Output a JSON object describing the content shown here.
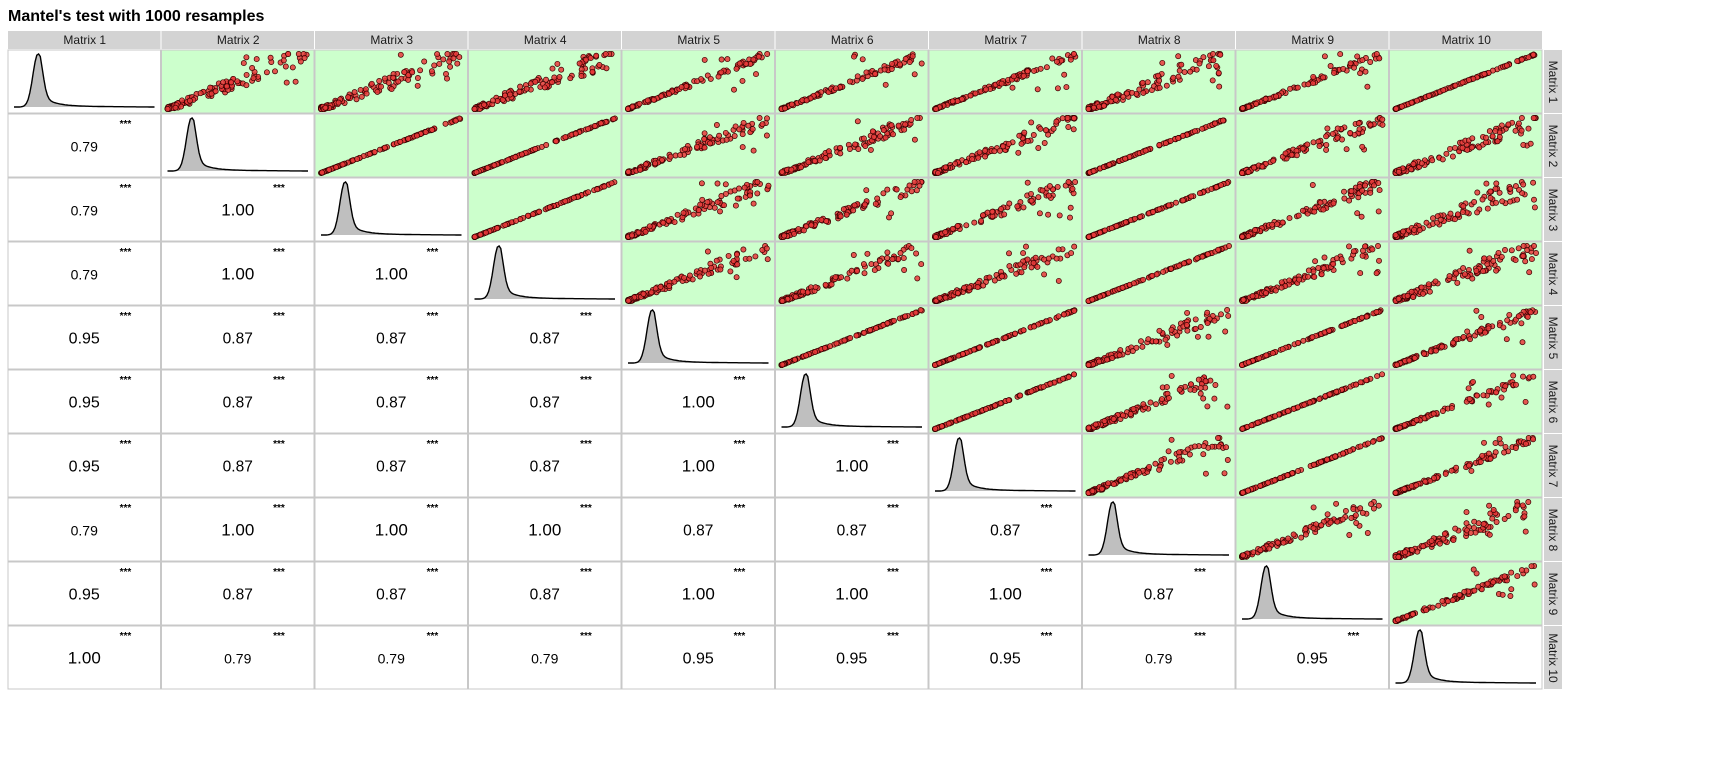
{
  "title": "Mantel's test with 1000 resamples",
  "chart_data": {
    "type": "scatter",
    "layout": "pairs-matrix",
    "variables": [
      "Matrix 1",
      "Matrix 2",
      "Matrix 3",
      "Matrix 4",
      "Matrix 5",
      "Matrix 6",
      "Matrix 7",
      "Matrix 8",
      "Matrix 9",
      "Matrix 10"
    ],
    "lower_triangle": "Mantel correlation coefficient with significance stars",
    "diagonal": "density",
    "upper_triangle": "scatter",
    "correlations": [
      [
        null,
        0.79,
        0.79,
        0.79,
        0.95,
        0.95,
        0.95,
        0.79,
        0.95,
        1.0
      ],
      [
        0.79,
        null,
        1.0,
        1.0,
        0.87,
        0.87,
        0.87,
        1.0,
        0.87,
        0.79
      ],
      [
        0.79,
        1.0,
        null,
        1.0,
        0.87,
        0.87,
        0.87,
        1.0,
        0.87,
        0.79
      ],
      [
        0.79,
        1.0,
        1.0,
        null,
        0.87,
        0.87,
        0.87,
        1.0,
        0.87,
        0.79
      ],
      [
        0.95,
        0.87,
        0.87,
        0.87,
        null,
        1.0,
        1.0,
        0.87,
        1.0,
        0.95
      ],
      [
        0.95,
        0.87,
        0.87,
        0.87,
        1.0,
        null,
        1.0,
        0.87,
        1.0,
        0.95
      ],
      [
        0.95,
        0.87,
        0.87,
        0.87,
        1.0,
        1.0,
        null,
        0.87,
        1.0,
        0.95
      ],
      [
        0.79,
        1.0,
        1.0,
        1.0,
        0.87,
        0.87,
        0.87,
        null,
        0.87,
        0.79
      ],
      [
        0.95,
        0.87,
        0.87,
        0.87,
        1.0,
        1.0,
        1.0,
        0.87,
        null,
        0.95
      ],
      [
        1.0,
        0.79,
        0.79,
        0.79,
        0.95,
        0.95,
        0.95,
        0.79,
        0.95,
        null
      ]
    ],
    "correlation_labels": [
      [
        "",
        "0.79",
        "0.79",
        "0.79",
        "0.95",
        "0.95",
        "0.95",
        "0.79",
        "0.95",
        "1.00"
      ],
      [
        "0.79",
        "",
        "1.00",
        "1.00",
        "0.87",
        "0.87",
        "0.87",
        "1.00",
        "0.87",
        "0.79"
      ],
      [
        "0.79",
        "1.00",
        "",
        "1.00",
        "0.87",
        "0.87",
        "0.87",
        "1.00",
        "0.87",
        "0.79"
      ],
      [
        "0.79",
        "1.00",
        "1.00",
        "",
        "0.87",
        "0.87",
        "0.87",
        "1.00",
        "0.87",
        "0.79"
      ],
      [
        "0.95",
        "0.87",
        "0.87",
        "0.87",
        "",
        "1.00",
        "1.00",
        "0.87",
        "1.00",
        "0.95"
      ],
      [
        "0.95",
        "0.87",
        "0.87",
        "0.87",
        "1.00",
        "",
        "1.00",
        "0.87",
        "1.00",
        "0.95"
      ],
      [
        "0.95",
        "0.87",
        "0.87",
        "0.87",
        "1.00",
        "1.00",
        "",
        "0.87",
        "1.00",
        "0.95"
      ],
      [
        "0.79",
        "1.00",
        "1.00",
        "1.00",
        "0.87",
        "0.87",
        "0.87",
        "",
        "0.87",
        "0.79"
      ],
      [
        "0.95",
        "0.87",
        "0.87",
        "0.87",
        "1.00",
        "1.00",
        "1.00",
        "0.87",
        "",
        "0.95"
      ],
      [
        "1.00",
        "0.79",
        "0.79",
        "0.79",
        "0.95",
        "0.95",
        "0.95",
        "0.79",
        "0.95",
        ""
      ]
    ],
    "significance": "***",
    "grid": false,
    "colors": {
      "scatter_panel_bg": "#ccffcc",
      "point_fill": "#e83a3a",
      "point_stroke": "#3a0000",
      "density_fill": "#bfbfbf",
      "strip_bg": "#d3d3d3"
    }
  }
}
